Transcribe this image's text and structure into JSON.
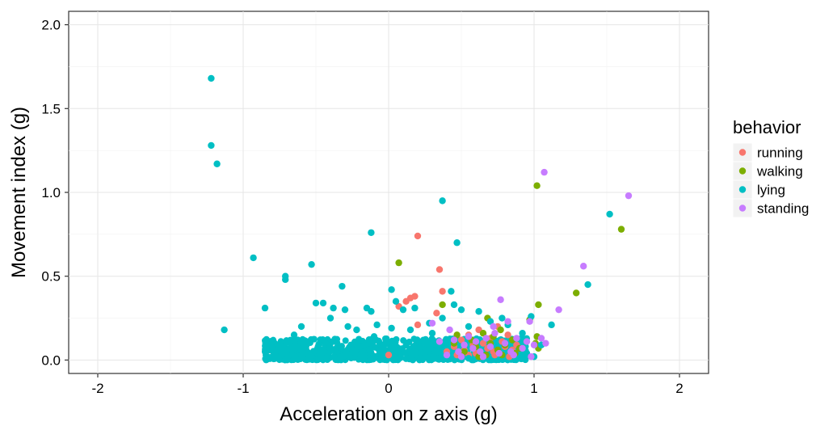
{
  "chart_data": {
    "type": "scatter",
    "xlabel": "Acceleration on z axis (g)",
    "ylabel": "Movement index (g)",
    "xlim": [
      -2.2,
      2.2
    ],
    "ylim": [
      -0.08,
      2.08
    ],
    "xticks": [
      -2,
      -1,
      0,
      1,
      2
    ],
    "xtick_labels": [
      "-2",
      "-1",
      "0",
      "1",
      "2"
    ],
    "yticks": [
      0,
      0.5,
      1.0,
      1.5,
      2.0
    ],
    "ytick_labels": [
      "0.0",
      "0.5",
      "1.0",
      "1.5",
      "2.0"
    ],
    "grid": true,
    "background": "#ffffff",
    "legend": {
      "title": "behavior",
      "position": "right"
    },
    "series": [
      {
        "name": "running",
        "color": "#F8766D",
        "points": [
          [
            0.2,
            0.74
          ],
          [
            0.35,
            0.54
          ],
          [
            0.37,
            0.41
          ],
          [
            0.15,
            0.37
          ],
          [
            0.18,
            0.38
          ],
          [
            0.12,
            0.35
          ],
          [
            0.07,
            0.32
          ],
          [
            0.33,
            0.28
          ],
          [
            0.2,
            0.21
          ],
          [
            0.0,
            0.03
          ],
          [
            0.4,
            0.05
          ],
          [
            0.45,
            0.08
          ],
          [
            0.47,
            0.03
          ],
          [
            0.5,
            0.12
          ],
          [
            0.52,
            0.06
          ],
          [
            0.55,
            0.15
          ],
          [
            0.58,
            0.09
          ],
          [
            0.6,
            0.04
          ],
          [
            0.62,
            0.18
          ],
          [
            0.65,
            0.1
          ],
          [
            0.68,
            0.07
          ],
          [
            0.7,
            0.13
          ],
          [
            0.72,
            0.05
          ],
          [
            0.75,
            0.2
          ],
          [
            0.78,
            0.11
          ],
          [
            0.8,
            0.08
          ],
          [
            0.82,
            0.15
          ],
          [
            0.85,
            0.06
          ],
          [
            0.88,
            0.09
          ],
          [
            0.55,
            0.03
          ],
          [
            0.63,
            0.02
          ],
          [
            0.73,
            0.03
          ],
          [
            0.83,
            0.02
          ]
        ]
      },
      {
        "name": "walking",
        "color": "#7CAE00",
        "points": [
          [
            1.02,
            1.04
          ],
          [
            1.6,
            0.78
          ],
          [
            0.07,
            0.58
          ],
          [
            0.37,
            0.33
          ],
          [
            1.03,
            0.33
          ],
          [
            1.29,
            0.4
          ],
          [
            0.97,
            0.24
          ],
          [
            0.68,
            0.25
          ],
          [
            0.45,
            0.1
          ],
          [
            0.47,
            0.15
          ],
          [
            0.52,
            0.05
          ],
          [
            0.57,
            0.12
          ],
          [
            0.6,
            0.08
          ],
          [
            0.65,
            0.16
          ],
          [
            0.67,
            0.03
          ],
          [
            0.7,
            0.1
          ],
          [
            0.72,
            0.14
          ],
          [
            0.75,
            0.06
          ],
          [
            0.77,
            0.18
          ],
          [
            0.8,
            0.09
          ],
          [
            0.85,
            0.12
          ],
          [
            0.87,
            0.04
          ],
          [
            0.9,
            0.07
          ],
          [
            1.02,
            0.14
          ],
          [
            1.03,
            0.07
          ],
          [
            1.01,
            0.1
          ],
          [
            0.62,
            0.02
          ],
          [
            0.78,
            0.03
          ]
        ]
      },
      {
        "name": "lying",
        "color": "#00BFC4",
        "points": [
          [
            -1.22,
            1.68
          ],
          [
            -1.22,
            1.28
          ],
          [
            -1.18,
            1.17
          ],
          [
            -0.93,
            0.61
          ],
          [
            -0.85,
            0.31
          ],
          [
            -0.71,
            0.5
          ],
          [
            -0.71,
            0.48
          ],
          [
            -0.53,
            0.57
          ],
          [
            -0.32,
            0.44
          ],
          [
            -1.13,
            0.18
          ],
          [
            -0.12,
            0.76
          ],
          [
            0.37,
            0.95
          ],
          [
            0.47,
            0.7
          ],
          [
            1.52,
            0.87
          ],
          [
            1.37,
            0.45
          ],
          [
            1.12,
            0.21
          ],
          [
            -0.5,
            0.34
          ],
          [
            -0.45,
            0.34
          ],
          [
            -0.38,
            0.31
          ],
          [
            -0.3,
            0.3
          ],
          [
            -0.15,
            0.31
          ],
          [
            -0.12,
            0.29
          ],
          [
            0.02,
            0.42
          ],
          [
            0.1,
            0.3
          ],
          [
            0.18,
            0.31
          ],
          [
            0.05,
            0.35
          ],
          [
            0.28,
            0.22
          ],
          [
            0.37,
            0.25
          ],
          [
            0.43,
            0.41
          ],
          [
            0.45,
            0.33
          ],
          [
            0.5,
            0.3
          ],
          [
            0.55,
            0.2
          ],
          [
            0.62,
            0.29
          ],
          [
            0.7,
            0.23
          ],
          [
            0.78,
            0.25
          ],
          [
            0.82,
            0.21
          ],
          [
            0.92,
            0.16
          ],
          [
            0.98,
            0.26
          ],
          [
            1.05,
            0.09
          ],
          [
            -0.28,
            0.2
          ],
          [
            -0.22,
            0.18
          ],
          [
            -0.08,
            0.21
          ],
          [
            -0.1,
            0.14
          ],
          [
            0.02,
            0.19
          ],
          [
            0.15,
            0.18
          ],
          [
            0.3,
            0.16
          ],
          [
            -0.6,
            0.2
          ],
          [
            -0.65,
            0.15
          ],
          [
            -0.4,
            0.25
          ],
          [
            0.95,
            0.04
          ],
          [
            1.0,
            0.02
          ],
          [
            0.55,
            0.01
          ]
        ]
      },
      {
        "name": "standing",
        "color": "#C77CFF",
        "points": [
          [
            1.07,
            1.12
          ],
          [
            1.65,
            0.98
          ],
          [
            1.34,
            0.56
          ],
          [
            1.17,
            0.3
          ],
          [
            0.97,
            0.23
          ],
          [
            0.77,
            0.36
          ],
          [
            0.82,
            0.23
          ],
          [
            0.72,
            0.2
          ],
          [
            0.3,
            0.22
          ],
          [
            0.35,
            0.11
          ],
          [
            0.42,
            0.18
          ],
          [
            0.45,
            0.12
          ],
          [
            0.48,
            0.05
          ],
          [
            0.52,
            0.09
          ],
          [
            0.55,
            0.14
          ],
          [
            0.58,
            0.07
          ],
          [
            0.6,
            0.11
          ],
          [
            0.63,
            0.05
          ],
          [
            0.67,
            0.13
          ],
          [
            0.7,
            0.08
          ],
          [
            0.73,
            0.16
          ],
          [
            0.76,
            0.04
          ],
          [
            0.8,
            0.1
          ],
          [
            0.84,
            0.05
          ],
          [
            0.88,
            0.13
          ],
          [
            0.92,
            0.07
          ],
          [
            0.95,
            0.11
          ],
          [
            1.0,
            0.09
          ],
          [
            1.05,
            0.13
          ],
          [
            1.08,
            0.1
          ],
          [
            0.4,
            0.03
          ],
          [
            0.5,
            0.02
          ],
          [
            0.98,
            0.02
          ],
          [
            0.65,
            0.02
          ],
          [
            0.86,
            0.03
          ]
        ]
      }
    ],
    "dense_cluster": {
      "series": "lying",
      "x_range": [
        -0.85,
        0.95
      ],
      "y_range": [
        0.0,
        0.13
      ],
      "count": 900
    }
  }
}
